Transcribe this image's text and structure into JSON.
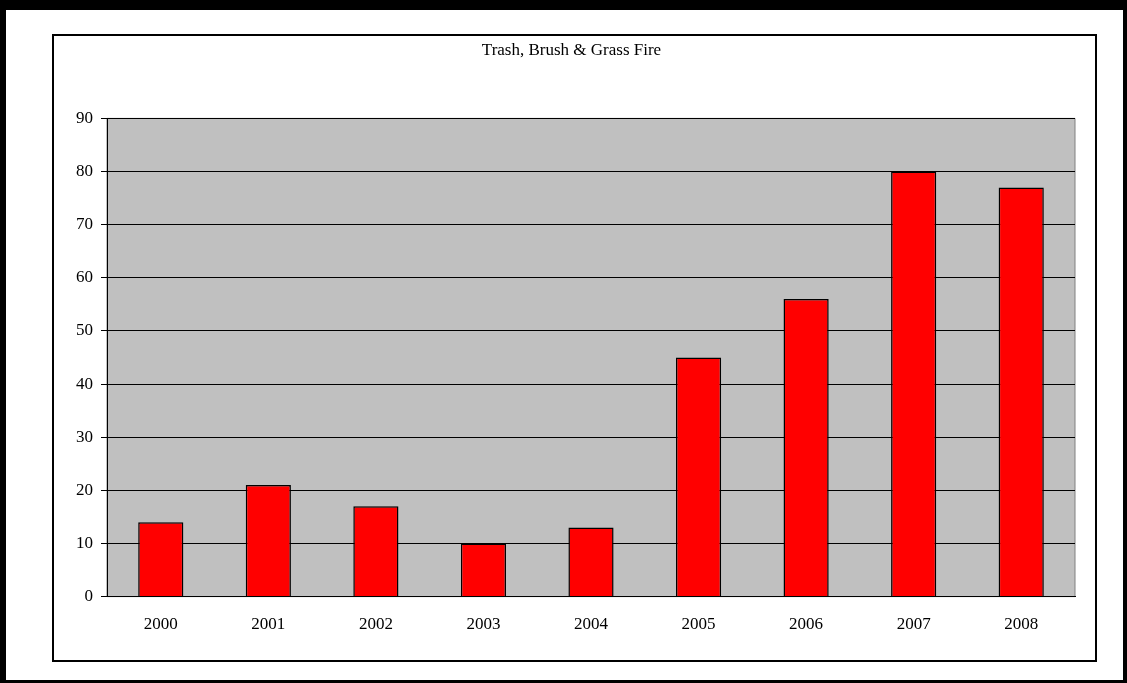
{
  "chart_data": {
    "type": "bar",
    "title": "Trash, Brush & Grass Fire",
    "categories": [
      "2000",
      "2001",
      "2002",
      "2003",
      "2004",
      "2005",
      "2006",
      "2007",
      "2008"
    ],
    "values": [
      14,
      21,
      17,
      10,
      13,
      45,
      56,
      80,
      77
    ],
    "color": "#ff0000",
    "ylim": [
      0,
      90
    ],
    "yticks": [
      0,
      10,
      20,
      30,
      40,
      50,
      60,
      70,
      80,
      90
    ],
    "grid": "y",
    "legend": false
  }
}
